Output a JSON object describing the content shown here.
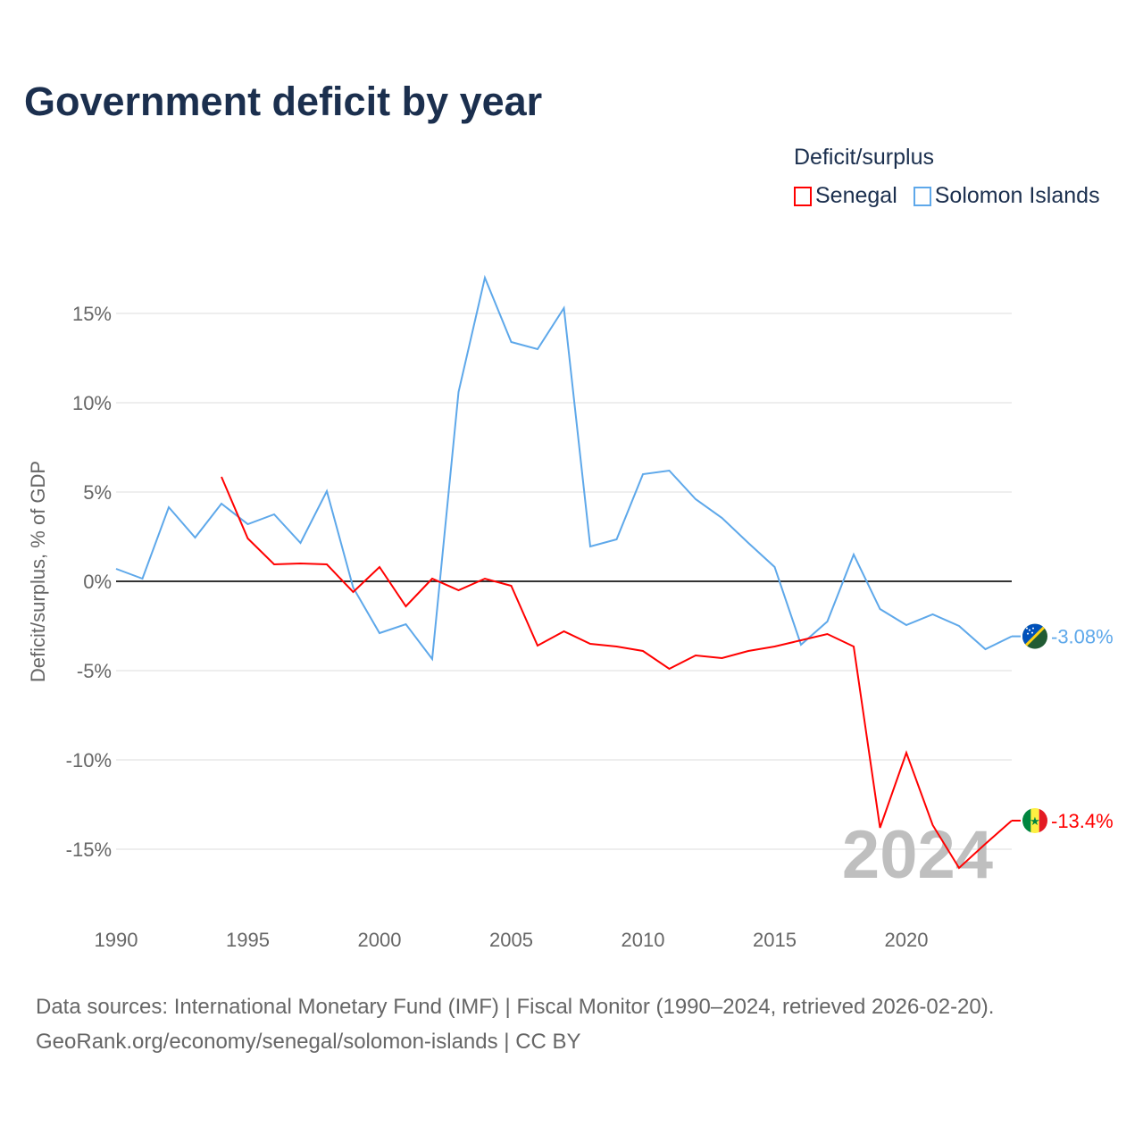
{
  "title": "Government deficit by year",
  "legend_title": "Deficit/surplus",
  "colors": {
    "Senegal": "#ff0000",
    "Solomon Islands": "#5ea8ea"
  },
  "source_line1": "Data sources: International Monetary Fund (IMF) | Fiscal Monitor (1990–2024, retrieved 2026-02-20).",
  "source_line2": "GeoRank.org/economy/senegal/solomon-islands | CC BY",
  "year_watermark": "2024",
  "chart_data": {
    "type": "line",
    "title": "Government deficit by year",
    "xlabel": "",
    "ylabel": "Deficit/surplus, % of GDP",
    "xlim": [
      1990,
      2024
    ],
    "ylim": [
      -18,
      18
    ],
    "x_ticks": [
      "1990",
      "1995",
      "2000",
      "2005",
      "2010",
      "2015",
      "2020"
    ],
    "y_ticks": [
      {
        "v": 15,
        "label": "15%"
      },
      {
        "v": 10,
        "label": "10%"
      },
      {
        "v": 5,
        "label": "5%"
      },
      {
        "v": 0,
        "label": "0%"
      },
      {
        "v": -5,
        "label": "-5%"
      },
      {
        "v": -10,
        "label": "-10%"
      },
      {
        "v": -15,
        "label": "-15%"
      }
    ],
    "grid": true,
    "legend_position": "top-right",
    "series": [
      {
        "name": "Senegal",
        "end_label": "-13.4%",
        "x": [
          1994,
          1995,
          1996,
          1997,
          1998,
          1999,
          2000,
          2001,
          2002,
          2003,
          2004,
          2005,
          2006,
          2007,
          2008,
          2009,
          2010,
          2011,
          2012,
          2013,
          2014,
          2015,
          2016,
          2017,
          2018,
          2019,
          2020,
          2021,
          2022,
          2023,
          2024
        ],
        "values": [
          5.85,
          2.4,
          0.95,
          1.0,
          0.95,
          -0.6,
          0.8,
          -1.4,
          0.15,
          -0.5,
          0.15,
          -0.25,
          -3.6,
          -2.8,
          -3.5,
          -3.65,
          -3.9,
          -4.9,
          -4.15,
          -4.3,
          -3.9,
          -3.65,
          -3.3,
          -2.95,
          -3.65,
          -13.8,
          -9.6,
          -13.65,
          -16.05,
          -14.7,
          -13.4
        ]
      },
      {
        "name": "Solomon Islands",
        "end_label": "-3.08%",
        "x": [
          1990,
          1991,
          1992,
          1993,
          1994,
          1995,
          1996,
          1997,
          1998,
          1999,
          2000,
          2001,
          2002,
          2003,
          2004,
          2005,
          2006,
          2007,
          2008,
          2009,
          2010,
          2011,
          2012,
          2013,
          2014,
          2015,
          2016,
          2017,
          2018,
          2019,
          2020,
          2021,
          2022,
          2023,
          2024
        ],
        "values": [
          0.7,
          0.15,
          4.15,
          2.45,
          4.35,
          3.2,
          3.75,
          2.15,
          5.05,
          -0.35,
          -2.9,
          -2.4,
          -4.35,
          10.6,
          17.0,
          13.4,
          13.0,
          15.3,
          1.95,
          2.35,
          6.0,
          6.2,
          4.6,
          3.55,
          2.15,
          0.8,
          -3.55,
          -2.25,
          1.5,
          -1.55,
          -2.45,
          -1.85,
          -2.5,
          -3.8,
          -3.08
        ]
      }
    ]
  }
}
